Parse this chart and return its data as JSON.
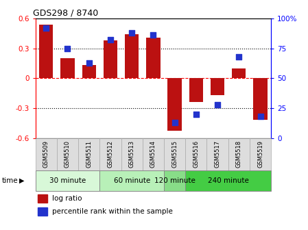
{
  "title": "GDS298 / 8740",
  "samples": [
    "GSM5509",
    "GSM5510",
    "GSM5511",
    "GSM5512",
    "GSM5513",
    "GSM5514",
    "GSM5515",
    "GSM5516",
    "GSM5517",
    "GSM5518",
    "GSM5519"
  ],
  "log_ratio": [
    0.54,
    0.2,
    0.13,
    0.38,
    0.44,
    0.41,
    -0.53,
    -0.24,
    -0.17,
    0.1,
    -0.42
  ],
  "percentile": [
    92,
    75,
    63,
    82,
    88,
    86,
    13,
    20,
    28,
    68,
    18
  ],
  "time_groups": [
    {
      "label": "30 minute",
      "start": 0,
      "end": 3,
      "color": "#d8f8d8"
    },
    {
      "label": "60 minute",
      "start": 3,
      "end": 6,
      "color": "#b8f0b8"
    },
    {
      "label": "120 minute",
      "start": 6,
      "end": 7,
      "color": "#88dd88"
    },
    {
      "label": "240 minute",
      "start": 7,
      "end": 11,
      "color": "#44cc44"
    }
  ],
  "bar_color": "#bb1111",
  "dot_color": "#2233cc",
  "ylim": [
    -0.6,
    0.6
  ],
  "yticks_left": [
    -0.6,
    -0.3,
    0,
    0.3,
    0.6
  ],
  "yticks_right_vals": [
    0,
    25,
    50,
    75,
    100
  ],
  "yticks_right_labels": [
    "0",
    "25",
    "50",
    "75",
    "100%"
  ],
  "bar_width": 0.65,
  "dot_size": 40,
  "fig_width": 4.49,
  "fig_height": 3.36,
  "dpi": 100
}
